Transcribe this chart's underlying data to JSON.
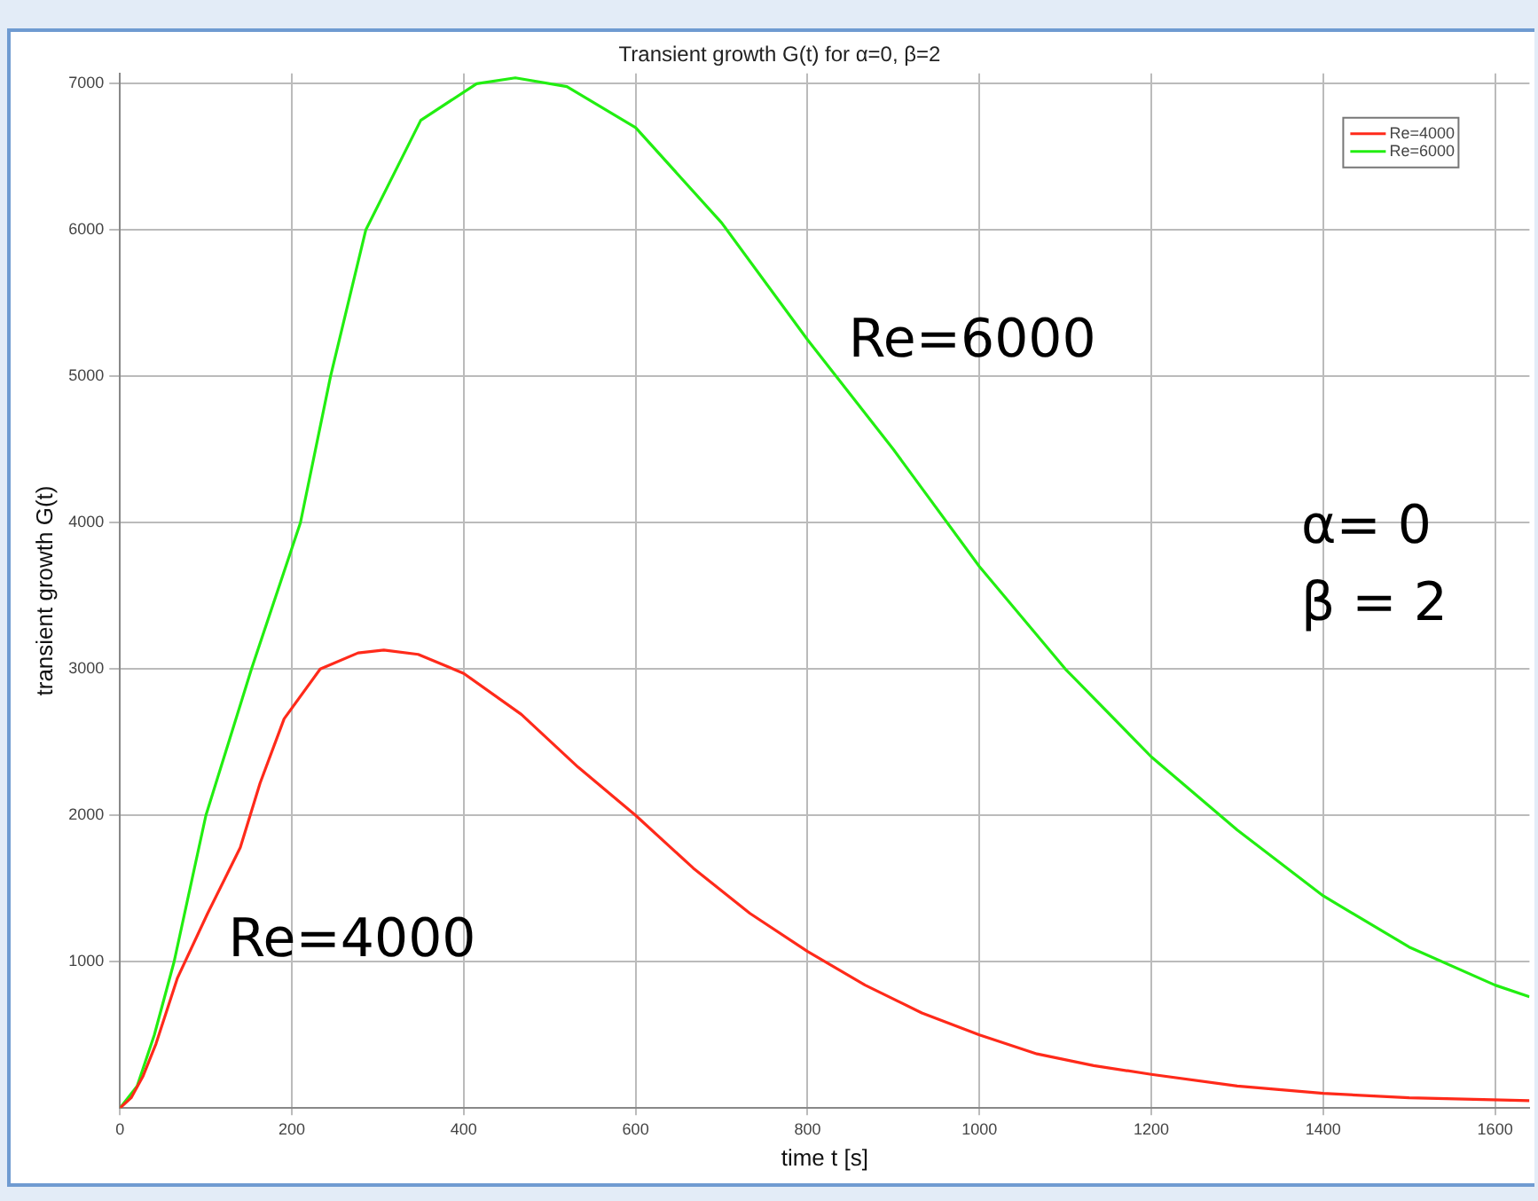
{
  "chart_data": {
    "type": "line",
    "title": "Transient growth G(t) for α=0, β=2",
    "xlabel": "time t [s]",
    "ylabel": "transient growth G(t)",
    "xlim": [
      0,
      1640
    ],
    "xticks": [
      0,
      200,
      400,
      600,
      800,
      1000,
      1200,
      1400,
      1600
    ],
    "ylim": [
      0,
      7070
    ],
    "yticks": [
      1000,
      2000,
      3000,
      4000,
      5000,
      6000,
      7000
    ],
    "grid": true,
    "legend": "top right",
    "marker": "none",
    "line_style": "solid",
    "series": [
      {
        "name": "Re=4000",
        "color": "#ff2a1a",
        "x": [
          0,
          13,
          27,
          42,
          67,
          102,
          140,
          163,
          191,
          233,
          277,
          307,
          347,
          400,
          467,
          533,
          600,
          667,
          733,
          800,
          867,
          933,
          1000,
          1067,
          1133,
          1200,
          1300,
          1400,
          1500,
          1640
        ],
        "values": [
          0,
          70,
          220,
          440,
          890,
          1330,
          1780,
          2220,
          2660,
          3000,
          3110,
          3130,
          3100,
          2970,
          2690,
          2330,
          2000,
          1640,
          1330,
          1070,
          840,
          650,
          500,
          370,
          290,
          230,
          150,
          100,
          70,
          50
        ]
      },
      {
        "name": "Re=6000",
        "color": "#22ee11",
        "x": [
          0,
          20,
          40,
          63,
          100,
          153,
          210,
          245,
          286,
          350,
          415,
          460,
          520,
          600,
          700,
          800,
          900,
          1000,
          1100,
          1200,
          1300,
          1400,
          1500,
          1600,
          1640
        ],
        "values": [
          0,
          150,
          500,
          1000,
          2000,
          3000,
          4000,
          5000,
          6000,
          6750,
          7000,
          7040,
          6980,
          6700,
          6050,
          5250,
          4500,
          3700,
          3000,
          2400,
          1900,
          1450,
          1100,
          840,
          760
        ]
      }
    ],
    "annotations": [
      "Re=6000",
      "Re=4000",
      "α= 0",
      "β = 2"
    ]
  }
}
